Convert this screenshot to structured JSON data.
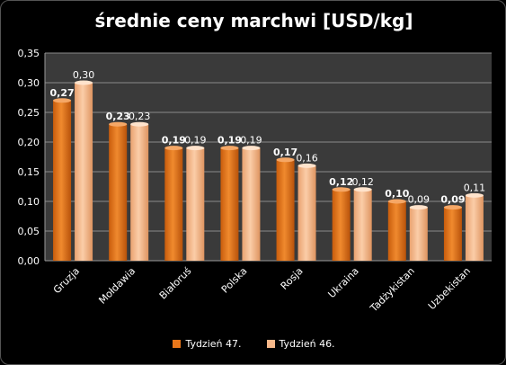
{
  "chart_data": {
    "type": "bar",
    "title": "średnie ceny marchwi [USD/kg]",
    "xlabel": "",
    "ylabel": "",
    "categories": [
      "Gruzja",
      "Mołdawia",
      "Białoruś",
      "Polska",
      "Rosja",
      "Ukraina",
      "Tadżykistan",
      "Uzbekistan"
    ],
    "series": [
      {
        "name": "Tydzień 47.",
        "values": [
          0.27,
          0.23,
          0.19,
          0.19,
          0.17,
          0.12,
          0.1,
          0.09
        ],
        "labels": [
          "0,27",
          "0,23",
          "0,19",
          "0,19",
          "0,17",
          "0,12",
          "0,10",
          "0,09"
        ],
        "color": "#E8761A"
      },
      {
        "name": "Tydzień 46.",
        "values": [
          0.3,
          0.23,
          0.19,
          0.19,
          0.16,
          0.12,
          0.09,
          0.11
        ],
        "labels": [
          "0,30",
          "0,23",
          "0,19",
          "0,19",
          "0,16",
          "0,12",
          "0,09",
          "0,11"
        ],
        "color": "#F7B88A"
      }
    ],
    "ylim": [
      0,
      0.35
    ],
    "yticks": [
      "0,00",
      "0,05",
      "0,10",
      "0,15",
      "0,20",
      "0,25",
      "0,30",
      "0,35"
    ],
    "grid": true,
    "legend": "bottom",
    "plot_background": "#3A3A3A"
  }
}
